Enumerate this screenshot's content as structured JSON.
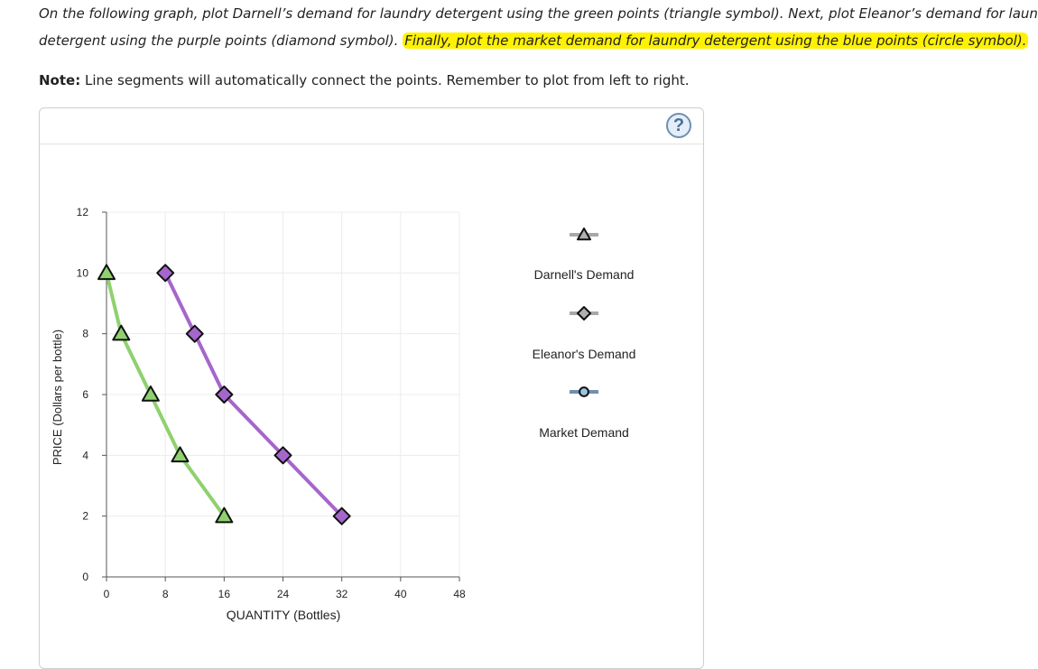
{
  "instructions": {
    "line1": "On the following graph, plot Darnell’s demand for laundry detergent using the green points (triangle symbol). Next, plot Eleanor’s demand for laundry",
    "line2_plain": "detergent using the purple points (diamond symbol). ",
    "line2_highlight": "Finally, plot the market demand for laundry detergent using the blue points (circle symbol)."
  },
  "note": {
    "label": "Note:",
    "text": " Line segments will automatically connect the points. Remember to plot from left to right."
  },
  "help": {
    "label": "?",
    "icon": "help-icon"
  },
  "chart_data": {
    "type": "line",
    "xlabel": "QUANTITY (Bottles)",
    "ylabel": "PRICE (Dollars per bottle)",
    "xlim": [
      0,
      48
    ],
    "ylim": [
      0,
      12
    ],
    "xticks": [
      "0",
      "8",
      "16",
      "24",
      "32",
      "40",
      "48"
    ],
    "yticks": [
      "0",
      "2",
      "4",
      "6",
      "8",
      "10",
      "12"
    ],
    "grid": true,
    "series": [
      {
        "name": "Darnell's Demand",
        "marker": "triangle",
        "color": "#8fd16e",
        "points": [
          [
            0,
            10
          ],
          [
            2,
            8
          ],
          [
            6,
            6
          ],
          [
            10,
            4
          ],
          [
            16,
            2
          ]
        ]
      },
      {
        "name": "Eleanor's Demand",
        "marker": "diamond",
        "color": "#a566cc",
        "points": [
          [
            8,
            10
          ],
          [
            12,
            8
          ],
          [
            16,
            6
          ],
          [
            24,
            4
          ],
          [
            32,
            2
          ]
        ]
      },
      {
        "name": "Market Demand",
        "marker": "circle",
        "color": "#4f81bd",
        "points": []
      }
    ]
  },
  "legend": [
    {
      "label": "Darnell's Demand",
      "marker": "triangle",
      "marker_fill": "#b0b0b0"
    },
    {
      "label": "Eleanor's Demand",
      "marker": "diamond",
      "marker_fill": "#b0b0b0"
    },
    {
      "label": "Market Demand",
      "marker": "circle",
      "marker_fill": "#9cc3e6",
      "line_color": "#6f8fb0"
    }
  ]
}
